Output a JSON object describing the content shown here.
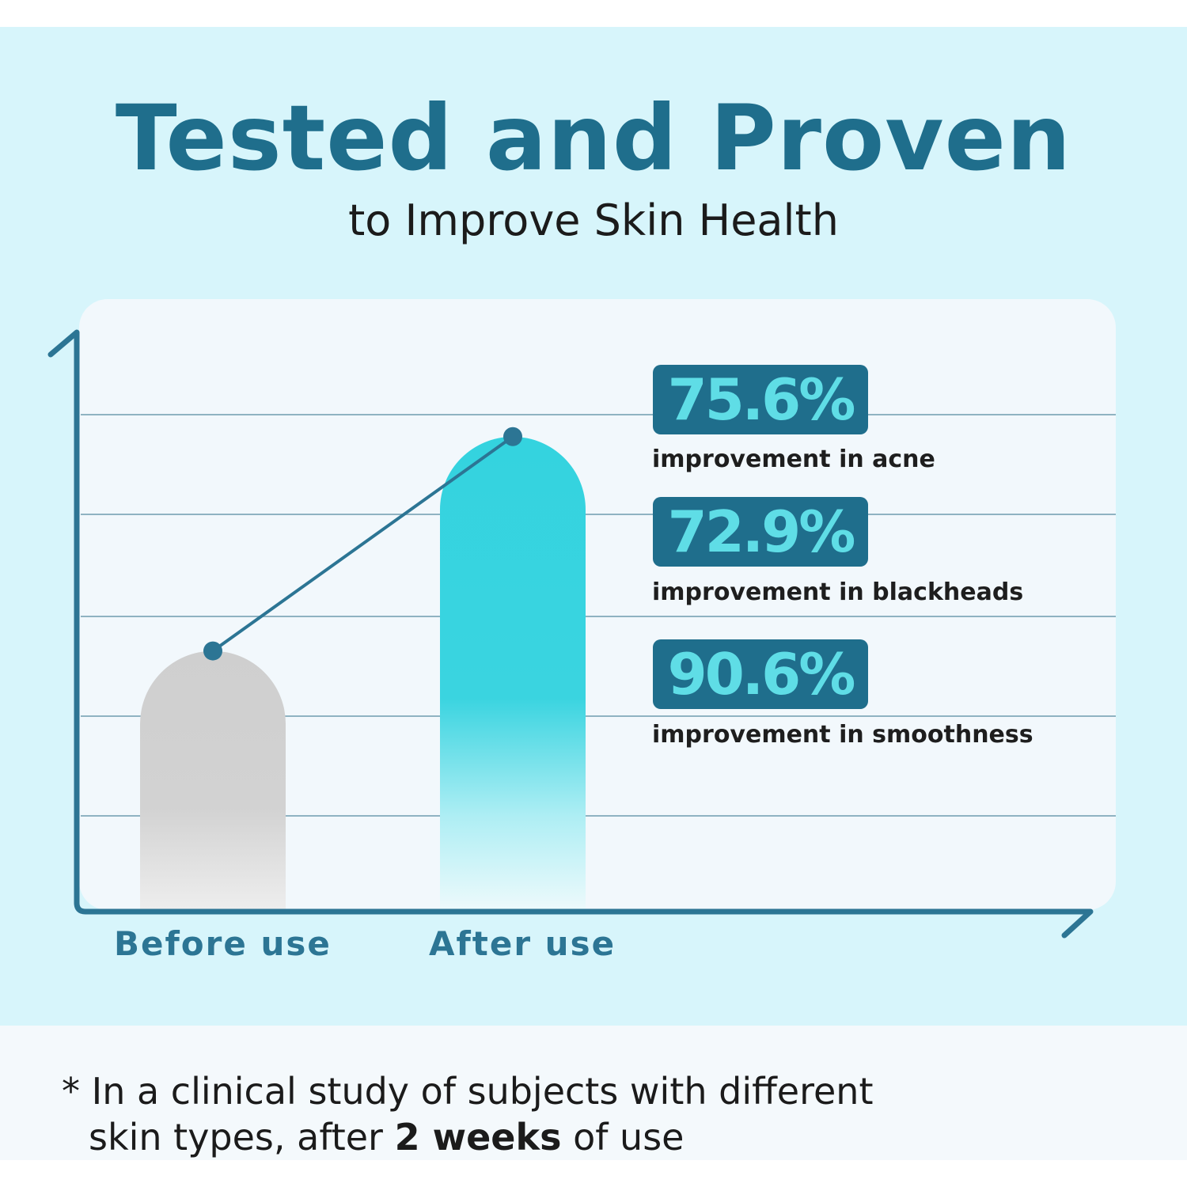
{
  "title": "Tested and Proven",
  "subtitle": "to Improve Skin Health",
  "chart_data": {
    "type": "bar",
    "categories": [
      "Before use",
      "After use"
    ],
    "values": [
      0.45,
      0.82
    ],
    "colors": [
      "#cfcfcf",
      "#34d3df"
    ],
    "axis_color": "#2c7594",
    "grid": true,
    "ylim": [
      0,
      1
    ]
  },
  "stats": [
    {
      "value": "75.6%",
      "label": "improvement in acne"
    },
    {
      "value": "72.9%",
      "label": "improvement in blackheads"
    },
    {
      "value": "90.6%",
      "label": "improvement in smoothness"
    }
  ],
  "footnote": {
    "prefix": "* In a clinical study of subjects with different",
    "line2_start": "skin types, after ",
    "bold": "2 weeks",
    "line2_end": " of use"
  }
}
